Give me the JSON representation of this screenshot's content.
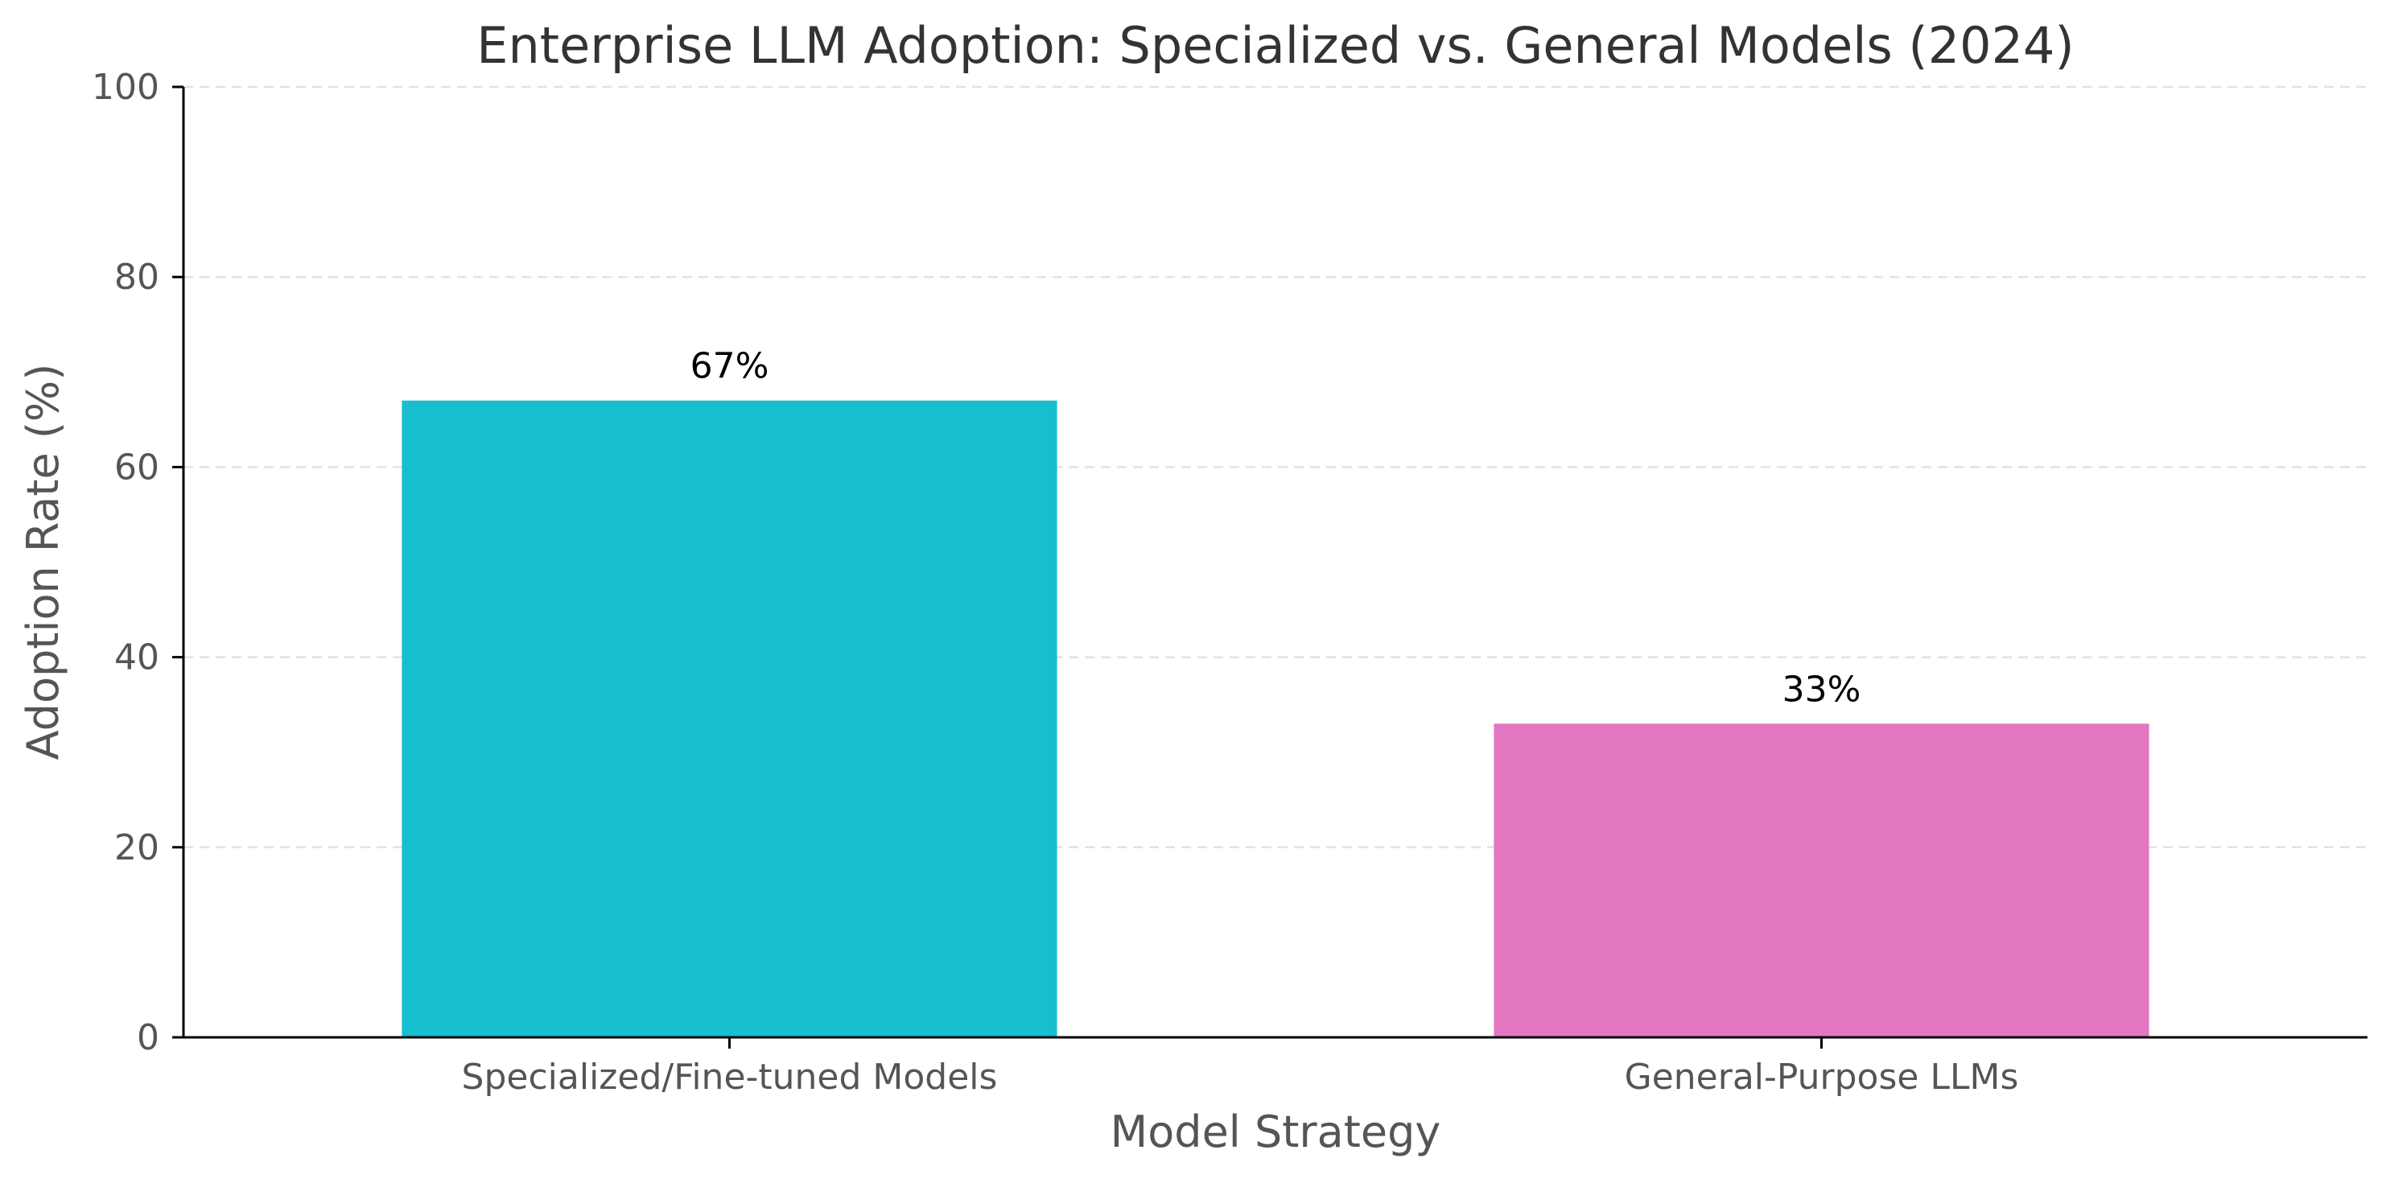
{
  "chart_data": {
    "type": "bar",
    "title": "Enterprise LLM Adoption: Specialized vs. General Models (2024)",
    "xlabel": "Model Strategy",
    "ylabel": "Adoption Rate (%)",
    "categories": [
      "Specialized/Fine-tuned Models",
      "General-Purpose LLMs"
    ],
    "values": [
      67,
      33
    ],
    "data_labels": [
      "67%",
      "33%"
    ],
    "colors": [
      "#17becf",
      "#e377c2"
    ],
    "ylim": [
      0,
      100
    ],
    "yticks": [
      0,
      20,
      40,
      60,
      80,
      100
    ],
    "ytick_labels": [
      "0",
      "20",
      "40",
      "60",
      "80",
      "100"
    ],
    "grid": "horizontal dashed",
    "legend": "none"
  }
}
